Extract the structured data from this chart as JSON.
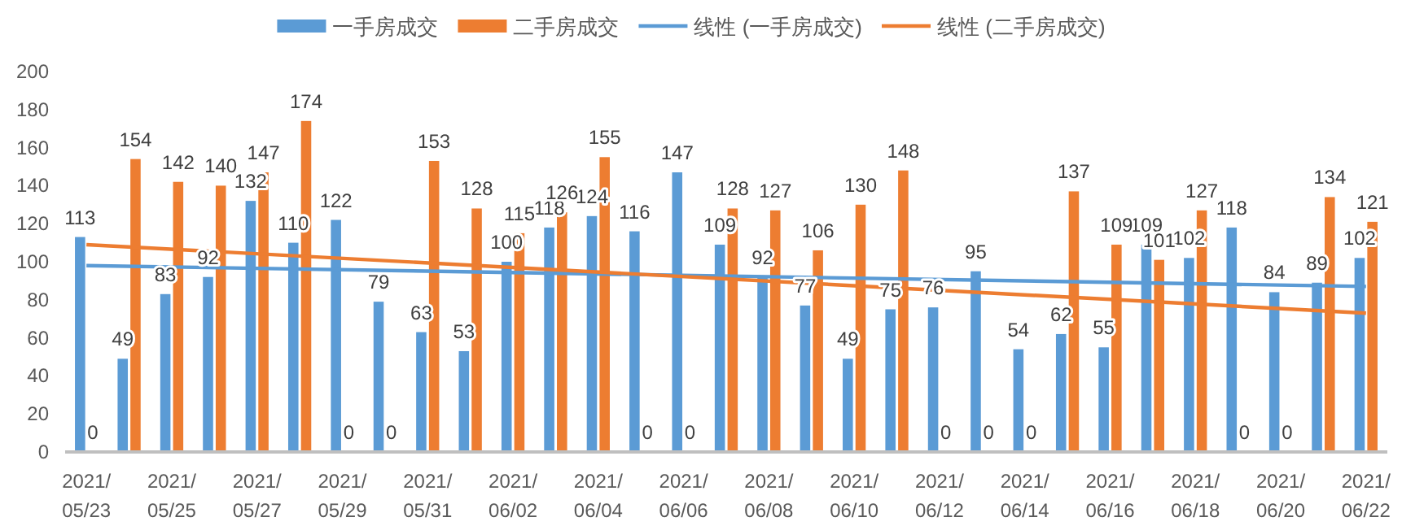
{
  "chart_data": {
    "type": "bar",
    "categories": [
      "2021/05/23",
      null,
      "2021/05/25",
      null,
      "2021/05/27",
      null,
      "2021/05/29",
      null,
      "2021/05/31",
      null,
      "2021/06/02",
      null,
      "2021/06/04",
      null,
      "2021/06/06",
      null,
      "2021/06/08",
      null,
      "2021/06/10",
      null,
      "2021/06/12",
      null,
      "2021/06/14",
      null,
      "2021/06/16",
      null,
      "2021/06/18",
      null,
      "2021/06/20",
      null,
      "2021/06/22"
    ],
    "series": [
      {
        "name": "一手房成交",
        "color": "#5b9bd5",
        "values": [
          113,
          49,
          83,
          92,
          132,
          110,
          122,
          79,
          63,
          53,
          100,
          118,
          124,
          116,
          147,
          109,
          92,
          77,
          49,
          75,
          76,
          95,
          54,
          62,
          55,
          109,
          102,
          118,
          84,
          89,
          102
        ],
        "value_labels": [
          "113",
          "49",
          "83",
          "92",
          "132",
          "110",
          "122",
          "79",
          "63",
          "53",
          "100",
          "118",
          "124",
          "116",
          "147",
          "109",
          "92",
          "77",
          "49",
          "75",
          "76",
          "95",
          "54",
          "62",
          "55",
          "109",
          "102",
          "118",
          "84",
          "89",
          "102"
        ]
      },
      {
        "name": "二手房成交",
        "color": "#ed7d31",
        "values": [
          0,
          154,
          142,
          140,
          147,
          174,
          0,
          0,
          153,
          128,
          115,
          126,
          155,
          0,
          0,
          128,
          127,
          106,
          130,
          148,
          0,
          0,
          0,
          137,
          109,
          101,
          127,
          0,
          0,
          134,
          121
        ],
        "value_labels": [
          "0",
          "154",
          "142",
          "140",
          "147",
          "174",
          "0",
          "0",
          "153",
          "128",
          "115",
          "126",
          "155",
          "0",
          "0",
          "128",
          "127",
          "106",
          "130",
          "148",
          "0",
          "0",
          "0",
          "137",
          "109",
          "101",
          "127",
          "0",
          "0",
          "134",
          "121"
        ]
      },
      {
        "name": "线性 (一手房成交)",
        "type": "line",
        "color": "#5b9bd5",
        "x": [
          "2021/05/23",
          "2021/06/22"
        ],
        "values": [
          98,
          87
        ]
      },
      {
        "name": "线性 (二手房成交)",
        "type": "line",
        "color": "#ed7d31",
        "x": [
          "2021/05/23",
          "2021/06/22"
        ],
        "values": [
          109,
          73
        ]
      }
    ],
    "ylim": [
      0,
      200
    ],
    "yticks": [
      0,
      20,
      40,
      60,
      80,
      100,
      120,
      140,
      160,
      180,
      200
    ],
    "legend": "top",
    "grid": false
  }
}
